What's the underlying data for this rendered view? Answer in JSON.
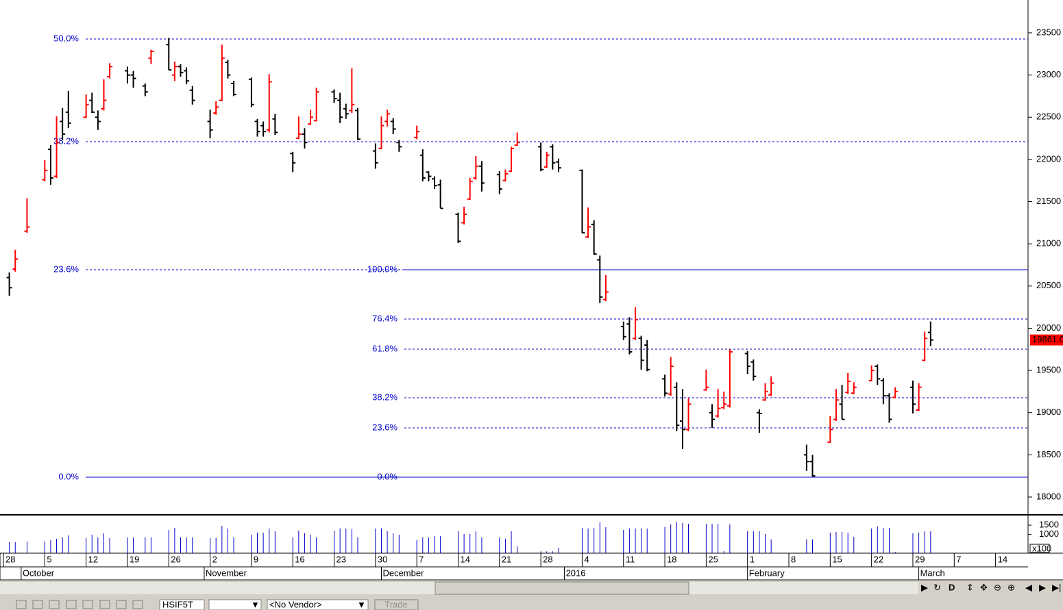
{
  "chart_data": {
    "type": "ohlc",
    "x": [
      1,
      2,
      4,
      7,
      8,
      9,
      10,
      11,
      14,
      15,
      16,
      17,
      18,
      21,
      22,
      24,
      25,
      28,
      29,
      30,
      31,
      32,
      35,
      36,
      37,
      38,
      39,
      42,
      43,
      44,
      45,
      46,
      49,
      50,
      51,
      52,
      53,
      56,
      57,
      58,
      59,
      60,
      63,
      64,
      65,
      66,
      67,
      70,
      71,
      72,
      73,
      74,
      77,
      78,
      79,
      80,
      81,
      84,
      85,
      86,
      87,
      91,
      92,
      93,
      94,
      98,
      99,
      100,
      101,
      102,
      105,
      106,
      107,
      108,
      109,
      112,
      113,
      114,
      115,
      116,
      119,
      120,
      121,
      122,
      123,
      126,
      127,
      128,
      129,
      130,
      136,
      137,
      140,
      141,
      142,
      143,
      144,
      147,
      148,
      149,
      150,
      151,
      154,
      155,
      156,
      157
    ],
    "open": [
      20600,
      20700,
      21150,
      21760,
      22120,
      21800,
      22450,
      22560,
      22500,
      22700,
      22500,
      22600,
      22980,
      23050,
      23000,
      22870,
      23200,
      23360,
      23000,
      23100,
      23050,
      22820,
      22450,
      22550,
      22700,
      23150,
      22900,
      22950,
      22450,
      22400,
      22350,
      22480,
      22070,
      22250,
      22300,
      22420,
      22460,
      22800,
      22700,
      22600,
      22580,
      22580,
      22100,
      22130,
      22450,
      22450,
      22200,
      22260,
      22050,
      21850,
      21770,
      21700,
      21350,
      21250,
      21530,
      21780,
      21920,
      21820,
      21750,
      21860,
      22170,
      22150,
      21910,
      22150,
      21970,
      21870,
      21080,
      21230,
      20810,
      20340,
      20020,
      20050,
      19880,
      19880,
      19800,
      19400,
      19220,
      19300,
      18900,
      18800,
      19270,
      19000,
      18960,
      19060,
      19080,
      19700,
      19600,
      19000,
      19150,
      19210,
      18500,
      18420,
      18650,
      18920,
      19100,
      19240,
      19230,
      19380,
      19550,
      19380,
      19200,
      19180,
      19300,
      19030,
      19620,
      19950
    ],
    "high": [
      20661,
      20930,
      21540,
      21990,
      22170,
      22510,
      22610,
      22810,
      22770,
      22790,
      22580,
      22950,
      23140,
      23100,
      23050,
      22900,
      23300,
      23440,
      23160,
      23130,
      23090,
      22870,
      22590,
      22690,
      23360,
      23180,
      22930,
      22970,
      22480,
      22450,
      23010,
      22540,
      22090,
      22510,
      22370,
      22590,
      22850,
      22830,
      22790,
      22660,
      23080,
      22610,
      22190,
      22510,
      22590,
      22490,
      22230,
      22400,
      22120,
      21860,
      21800,
      21760,
      21370,
      21440,
      21780,
      22040,
      21980,
      21860,
      21880,
      22150,
      22320,
      22200,
      22090,
      22180,
      22010,
      21880,
      21430,
      21280,
      20860,
      20630,
      20080,
      20130,
      20250,
      19910,
      19860,
      19450,
      19660,
      19360,
      19280,
      19170,
      19510,
      19100,
      19280,
      19250,
      19750,
      19730,
      19630,
      19040,
      19350,
      19430,
      18620,
      18500,
      18960,
      19280,
      19330,
      19470,
      19360,
      19560,
      19570,
      19410,
      19230,
      19300,
      19380,
      19350,
      19960,
      20080
    ],
    "low": [
      20385,
      20670,
      21130,
      21740,
      21700,
      21780,
      22230,
      22370,
      22490,
      22550,
      22350,
      22580,
      22960,
      22900,
      22850,
      22750,
      23130,
      23060,
      22930,
      22980,
      22890,
      22650,
      22250,
      22530,
      22690,
      22960,
      22750,
      22620,
      22270,
      22270,
      22320,
      22290,
      21850,
      22240,
      22130,
      22410,
      22450,
      22670,
      22430,
      22480,
      22550,
      22230,
      21890,
      22120,
      22390,
      22300,
      22090,
      22240,
      21740,
      21740,
      21650,
      21420,
      21010,
      21230,
      21520,
      21760,
      21620,
      21590,
      21740,
      21850,
      22160,
      21860,
      21900,
      21880,
      21850,
      21130,
      21070,
      20870,
      20300,
      20320,
      19860,
      19690,
      19860,
      19510,
      19490,
      19190,
      19200,
      18780,
      18570,
      18780,
      19260,
      18820,
      18940,
      19040,
      19060,
      19460,
      19380,
      18760,
      19140,
      19200,
      18310,
      18240,
      18640,
      18900,
      18920,
      19220,
      19220,
      19370,
      19330,
      19100,
      18880,
      19170,
      18990,
      19020,
      19610,
      19790
    ],
    "close": [
      20480,
      20820,
      21200,
      21870,
      21780,
      22200,
      22300,
      22430,
      22650,
      22560,
      22450,
      22700,
      23100,
      23000,
      22960,
      22800,
      23280,
      23060,
      23100,
      23030,
      22930,
      22700,
      22350,
      22620,
      23200,
      23000,
      22770,
      22650,
      22330,
      22330,
      22920,
      22320,
      21960,
      22300,
      22200,
      22500,
      22800,
      22720,
      22500,
      22540,
      22650,
      22240,
      21960,
      22400,
      22540,
      22360,
      22150,
      22330,
      21780,
      21800,
      21690,
      21420,
      21030,
      21350,
      21740,
      21920,
      21720,
      21650,
      21830,
      22130,
      22200,
      21880,
      22050,
      21960,
      21900,
      21130,
      21200,
      20880,
      20370,
      20430,
      19900,
      19720,
      20100,
      19620,
      19510,
      19230,
      19550,
      18850,
      18800,
      19100,
      19300,
      18920,
      19050,
      19100,
      19720,
      19550,
      19430,
      18990,
      19250,
      19350,
      18420,
      18250,
      18800,
      19150,
      18920,
      19370,
      19300,
      19500,
      19400,
      19200,
      18920,
      19250,
      19100,
      19300,
      19880,
      19861
    ],
    "up_color": "#ff0000",
    "down_color": "#000000",
    "xlim": [
      -0.58,
      173.5
    ],
    "xticks": [
      {
        "value": 0,
        "label": "28"
      },
      {
        "value": 7,
        "label": "5"
      },
      {
        "value": 14,
        "label": "12"
      },
      {
        "value": 21,
        "label": "19"
      },
      {
        "value": 28,
        "label": "26"
      },
      {
        "value": 35,
        "label": "2"
      },
      {
        "value": 42,
        "label": "9"
      },
      {
        "value": 49,
        "label": "16"
      },
      {
        "value": 56,
        "label": "23"
      },
      {
        "value": 63,
        "label": "30"
      },
      {
        "value": 70,
        "label": "7"
      },
      {
        "value": 77,
        "label": "14"
      },
      {
        "value": 84,
        "label": "21"
      },
      {
        "value": 91,
        "label": "28"
      },
      {
        "value": 98,
        "label": "4"
      },
      {
        "value": 105,
        "label": "11"
      },
      {
        "value": 112,
        "label": "18"
      },
      {
        "value": 119,
        "label": "25"
      },
      {
        "value": 126,
        "label": "1"
      },
      {
        "value": 133,
        "label": "8"
      },
      {
        "value": 140,
        "label": "15"
      },
      {
        "value": 147,
        "label": "22"
      },
      {
        "value": 154,
        "label": "29"
      },
      {
        "value": 161,
        "label": "7"
      },
      {
        "value": 168,
        "label": "14"
      }
    ],
    "month_labels": [
      {
        "value": 3,
        "label": "October"
      },
      {
        "value": 34,
        "label": "November"
      },
      {
        "value": 64,
        "label": "December"
      },
      {
        "value": 95,
        "label": "2016"
      },
      {
        "value": 126,
        "label": "February"
      },
      {
        "value": 155,
        "label": "March"
      }
    ],
    "ylim": [
      17789,
      23889
    ],
    "yticks": [
      18000,
      18500,
      19000,
      19500,
      20000,
      20500,
      21000,
      21500,
      22000,
      22500,
      23000,
      23500
    ],
    "last_price": {
      "value": 19861,
      "label": "19861.0"
    },
    "fib_groups": [
      {
        "levels": [
          {
            "label": "50.0%",
            "value": 23427,
            "style": "dashed"
          },
          {
            "label": "38.2%",
            "value": 22210,
            "style": "dashed"
          },
          {
            "label": "23.6%",
            "value": 20693,
            "style": "dashed"
          },
          {
            "label": "0.0%",
            "value": 18235,
            "style": "solid"
          }
        ]
      },
      {
        "levels": [
          {
            "label": "100.0%",
            "value": 20693,
            "style": "solid"
          },
          {
            "label": "76.4%",
            "value": 20109,
            "style": "dashed"
          },
          {
            "label": "61.8%",
            "value": 19752,
            "style": "dashed"
          },
          {
            "label": "38.2%",
            "value": 19176,
            "style": "dashed"
          },
          {
            "label": "23.6%",
            "value": 18819,
            "style": "dashed"
          },
          {
            "label": "0.0%",
            "value": 18235,
            "style": "solid"
          }
        ]
      }
    ],
    "fib_color": "#0000cc",
    "volume": {
      "values": [
        586,
        586,
        623,
        623,
        696,
        769,
        842,
        952,
        806,
        989,
        842,
        1062,
        806,
        842,
        842,
        842,
        842,
        1245,
        1355,
        842,
        842,
        842,
        806,
        806,
        1465,
        1319,
        842,
        989,
        1099,
        1099,
        1319,
        1172,
        842,
        1209,
        1062,
        989,
        842,
        1209,
        1319,
        1319,
        1282,
        842,
        1319,
        1319,
        1172,
        1062,
        989,
        696,
        842,
        842,
        916,
        916,
        1172,
        1026,
        1026,
        1172,
        842,
        842,
        769,
        1172,
        366,
        100,
        100,
        100,
        293,
        1355,
        1319,
        1355,
        1648,
        1392,
        1245,
        1319,
        1319,
        1319,
        1319,
        1392,
        1538,
        1685,
        1612,
        1575,
        1575,
        1575,
        1575,
        110,
        1538,
        1172,
        1172,
        1172,
        1026,
        733,
        733,
        733,
        1099,
        1136,
        1136,
        1099,
        879,
        1319,
        1429,
        1355,
        1355,
        73,
        1062,
        1099,
        1172,
        1172
      ],
      "color": "#0000cc",
      "ylim": [
        0,
        1940
      ],
      "yticks": [
        1000,
        1500
      ],
      "unit_label": "x100"
    }
  },
  "toolbar": {
    "symbol": "HSIF5T",
    "vendor": "<No Vendor>",
    "trade": "Trade",
    "nav_label": "D"
  }
}
